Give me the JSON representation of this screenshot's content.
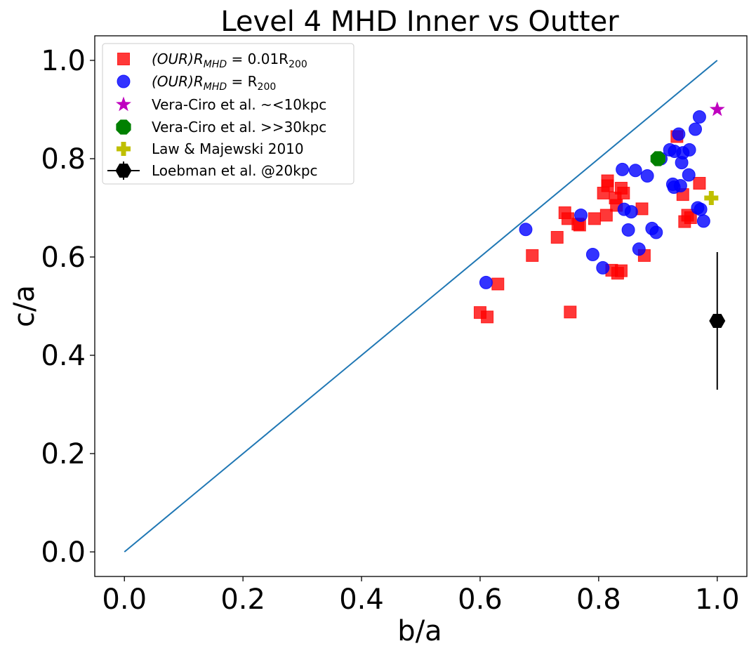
{
  "chart_data": {
    "type": "scatter",
    "title": "Level 4 MHD Inner vs Outter",
    "xlabel": "b/a",
    "ylabel": "c/a",
    "xlim": [
      -0.05,
      1.05
    ],
    "ylim": [
      -0.05,
      1.05
    ],
    "xticks": [
      0.0,
      0.2,
      0.4,
      0.6,
      0.8,
      1.0
    ],
    "yticks": [
      0.0,
      0.2,
      0.4,
      0.6,
      0.8,
      1.0
    ],
    "xtick_labels": [
      "0.0",
      "0.2",
      "0.4",
      "0.6",
      "0.8",
      "1.0"
    ],
    "ytick_labels": [
      "0.0",
      "0.2",
      "0.4",
      "0.6",
      "0.8",
      "1.0"
    ],
    "grid": false,
    "legend_position": "top-left",
    "reference_line": {
      "x": [
        0.0,
        1.0
      ],
      "y": [
        0.0,
        1.0
      ],
      "color": "#1f77b4"
    },
    "series": [
      {
        "name": "(OUR)R_MHD = 0.01R_200",
        "label_parts": {
          "pre": "(OUR)R",
          "sub1": "MHD",
          "mid": " = 0.01R",
          "sub2": "200"
        },
        "marker": "square",
        "color": "#ff0000",
        "points": [
          [
            0.6,
            0.487
          ],
          [
            0.612,
            0.478
          ],
          [
            0.63,
            0.545
          ],
          [
            0.688,
            0.603
          ],
          [
            0.73,
            0.64
          ],
          [
            0.743,
            0.69
          ],
          [
            0.748,
            0.678
          ],
          [
            0.752,
            0.488
          ],
          [
            0.765,
            0.667
          ],
          [
            0.768,
            0.665
          ],
          [
            0.793,
            0.678
          ],
          [
            0.808,
            0.73
          ],
          [
            0.813,
            0.685
          ],
          [
            0.815,
            0.745
          ],
          [
            0.815,
            0.755
          ],
          [
            0.822,
            0.573
          ],
          [
            0.828,
            0.72
          ],
          [
            0.83,
            0.705
          ],
          [
            0.832,
            0.567
          ],
          [
            0.838,
            0.572
          ],
          [
            0.838,
            0.74
          ],
          [
            0.842,
            0.73
          ],
          [
            0.873,
            0.698
          ],
          [
            0.877,
            0.603
          ],
          [
            0.932,
            0.845
          ],
          [
            0.942,
            0.727
          ],
          [
            0.945,
            0.672
          ],
          [
            0.95,
            0.685
          ],
          [
            0.955,
            0.68
          ],
          [
            0.97,
            0.75
          ]
        ]
      },
      {
        "name": "(OUR)R_MHD = R_200",
        "label_parts": {
          "pre": "(OUR)R",
          "sub1": "MHD",
          "mid": " = R",
          "sub2": "200"
        },
        "marker": "circle",
        "color": "#0000ff",
        "points": [
          [
            0.61,
            0.548
          ],
          [
            0.677,
            0.656
          ],
          [
            0.77,
            0.685
          ],
          [
            0.79,
            0.605
          ],
          [
            0.807,
            0.578
          ],
          [
            0.84,
            0.778
          ],
          [
            0.843,
            0.697
          ],
          [
            0.85,
            0.655
          ],
          [
            0.855,
            0.692
          ],
          [
            0.862,
            0.776
          ],
          [
            0.868,
            0.616
          ],
          [
            0.882,
            0.765
          ],
          [
            0.89,
            0.658
          ],
          [
            0.897,
            0.65
          ],
          [
            0.905,
            0.8
          ],
          [
            0.92,
            0.818
          ],
          [
            0.925,
            0.748
          ],
          [
            0.927,
            0.742
          ],
          [
            0.928,
            0.815
          ],
          [
            0.935,
            0.85
          ],
          [
            0.938,
            0.745
          ],
          [
            0.94,
            0.792
          ],
          [
            0.942,
            0.812
          ],
          [
            0.952,
            0.767
          ],
          [
            0.953,
            0.818
          ],
          [
            0.963,
            0.86
          ],
          [
            0.967,
            0.7
          ],
          [
            0.97,
            0.885
          ],
          [
            0.972,
            0.697
          ],
          [
            0.977,
            0.673
          ]
        ]
      },
      {
        "name": "Vera-Ciro et al. ~<10kpc",
        "marker": "star",
        "color": "#bf00bf",
        "points": [
          [
            1.0,
            0.9
          ]
        ]
      },
      {
        "name": "Vera-Ciro et al. >>30kpc",
        "marker": "octagon",
        "color": "#008000",
        "points": [
          [
            0.9,
            0.8
          ]
        ]
      },
      {
        "name": "Law & Majewski 2010",
        "marker": "plus",
        "color": "#bfbf00",
        "points": [
          [
            0.99,
            0.72
          ]
        ]
      },
      {
        "name": "Loebman et al. @20kpc",
        "marker": "hexagon",
        "color": "#000000",
        "points": [
          [
            1.0,
            0.47
          ]
        ],
        "yerr": [
          0.14
        ]
      }
    ]
  }
}
